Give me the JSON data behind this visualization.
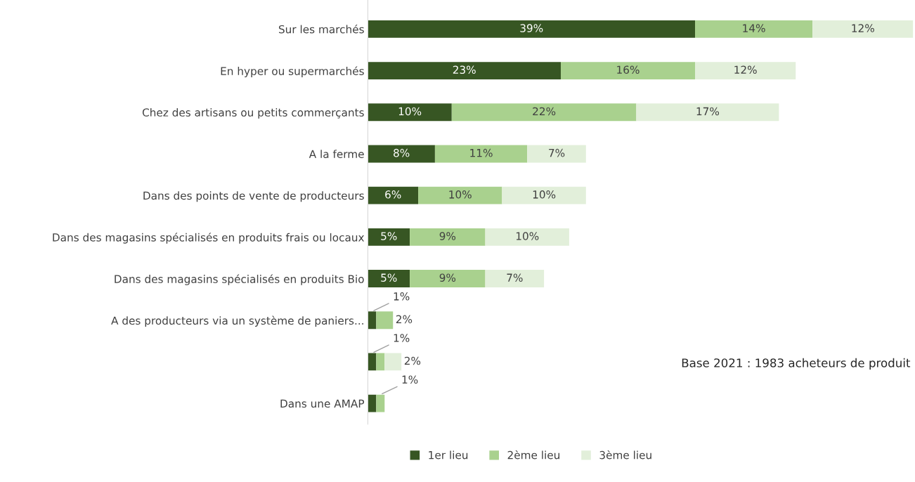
{
  "chart_data": {
    "type": "bar",
    "orientation": "horizontal",
    "stacked": true,
    "categories": [
      "Sur les marchés",
      "En hyper ou supermarchés",
      "Chez des artisans ou petits commerçants",
      "A la ferme",
      "Dans des points de vente de producteurs",
      "Dans des magasins spécialisés en produits frais ou locaux",
      "Dans des magasins spécialisés en produits Bio",
      "A des producteurs via un système de paniers...",
      null,
      "Dans une AMAP"
    ],
    "series": [
      {
        "name": "1er lieu",
        "color": "#375623",
        "values": [
          39,
          23,
          10,
          8,
          6,
          5,
          5,
          1,
          1,
          1
        ],
        "value_labels": [
          "39%",
          "23%",
          "10%",
          "8%",
          "6%",
          "5%",
          "5%",
          "1%",
          "1%",
          null
        ]
      },
      {
        "name": "2ème lieu",
        "color": "#a9d18e",
        "values": [
          14,
          16,
          22,
          11,
          10,
          9,
          9,
          2,
          1,
          1
        ],
        "value_labels": [
          "14%",
          "16%",
          "22%",
          "11%",
          "10%",
          "9%",
          "9%",
          "2%",
          null,
          "1%"
        ]
      },
      {
        "name": "3ème lieu",
        "color": "#e2efda",
        "values": [
          12,
          12,
          17,
          7,
          10,
          10,
          7,
          null,
          2,
          null
        ],
        "value_labels": [
          "12%",
          "12%",
          "17%",
          "7%",
          "10%",
          "10%",
          "7%",
          null,
          "2%",
          null
        ]
      }
    ],
    "legend": "bottom",
    "grid": false,
    "tick_labels": "y",
    "annotations": [
      "Base 2021 : 1983 acheteurs de produit"
    ]
  }
}
